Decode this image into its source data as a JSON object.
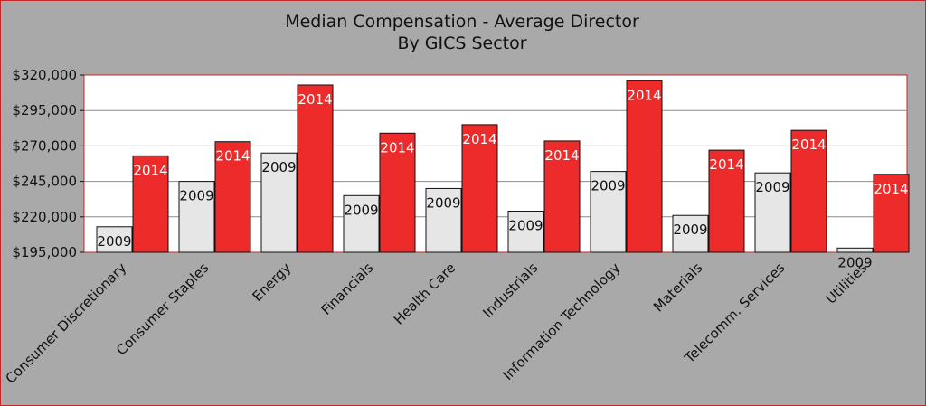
{
  "chart_data": {
    "type": "bar",
    "title": "Median Compensation - Average Director",
    "subtitle": "By GICS Sector",
    "xlabel": "",
    "ylabel": "",
    "ylim": [
      195000,
      320000
    ],
    "yticks": [
      195000,
      220000,
      245000,
      270000,
      295000,
      320000
    ],
    "ytick_labels": [
      "$195,000",
      "$220,000",
      "$245,000",
      "$270,000",
      "$295,000",
      "$320,000"
    ],
    "grid": true,
    "categories": [
      "Consumer Discretionary",
      "Consumer Staples",
      "Energy",
      "Financials",
      "Health Care",
      "Industrials",
      "Information Technology",
      "Materials",
      "Telecomm. Services",
      "Utilities"
    ],
    "series": [
      {
        "name": "2009",
        "color": "#e6e6e6",
        "label_color": "#111111",
        "values": [
          213000,
          245000,
          265000,
          235000,
          240000,
          224000,
          252000,
          221000,
          251000,
          198000
        ]
      },
      {
        "name": "2014",
        "color": "#ee2b2b",
        "label_color": "#ffffff",
        "values": [
          263000,
          273000,
          313000,
          279000,
          285000,
          273500,
          316000,
          267000,
          281000,
          250000
        ]
      }
    ]
  }
}
